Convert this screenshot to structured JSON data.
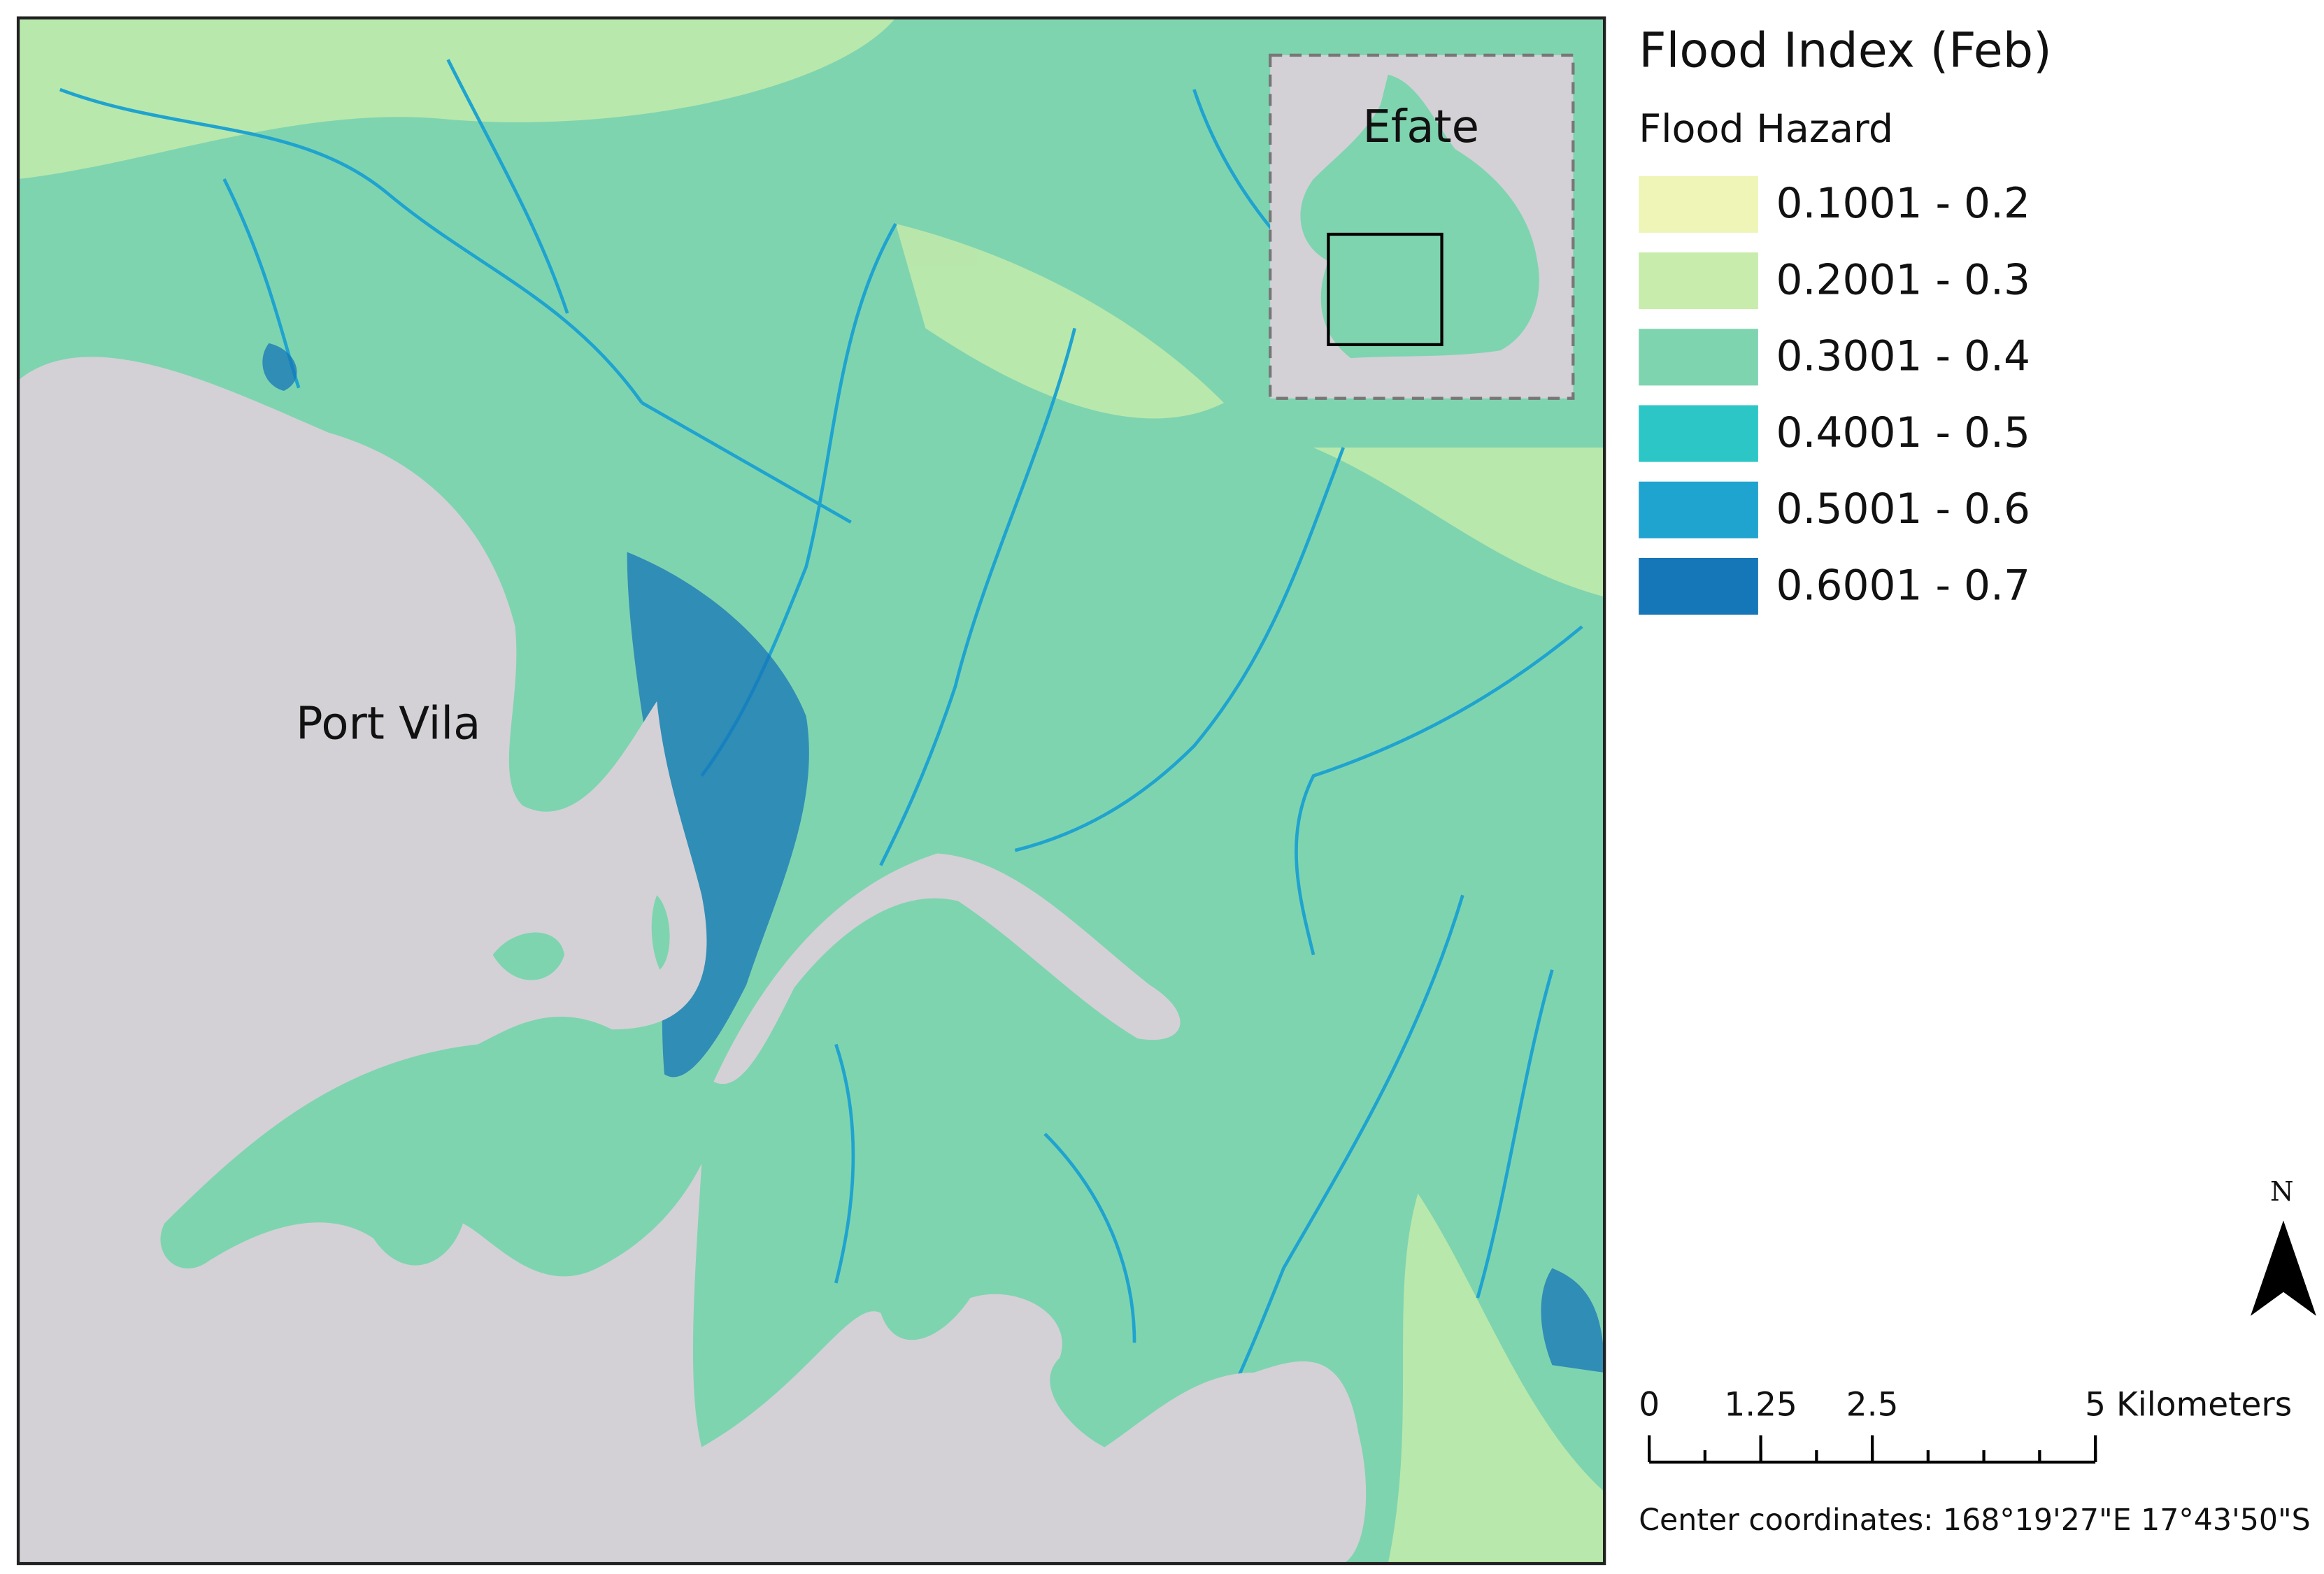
{
  "map": {
    "title": "Flood Index (Feb)",
    "legend": {
      "title": "Flood Hazard",
      "items": [
        {
          "label": "0.1001 - 0.2",
          "color": "#eef5b7"
        },
        {
          "label": "0.2001 - 0.3",
          "color": "#c8ecab"
        },
        {
          "label": "0.3001 - 0.4",
          "color": "#7fd4b0"
        },
        {
          "label": "0.4001 - 0.5",
          "color": "#2cc6c6"
        },
        {
          "label": "0.5001 - 0.6",
          "color": "#1fa3cf"
        },
        {
          "label": "0.6001 - 0.7",
          "color": "#1576b8"
        }
      ]
    },
    "places": {
      "city": "Port Vila",
      "island": "Efate"
    },
    "north": "N",
    "scale_bar": {
      "lim": [
        0,
        5
      ],
      "ticks": [
        0,
        1.25,
        2.5,
        {
          "value": 5,
          "label": "5 Kilometers"
        }
      ]
    },
    "coordinates": "Center coordinates: 168°19'27\"E 17°43'50\"S"
  }
}
